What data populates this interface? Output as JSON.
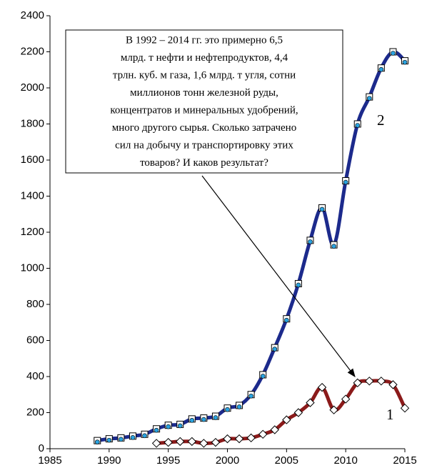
{
  "chart_data": {
    "type": "line",
    "annotation": [
      "В 1992 – 2014  гг. это примерно 6,5",
      "млрд. т нефти и нефтепродуктов, 4,4",
      "трлн. куб. м газа, 1,6 млрд. т угля, сотни",
      "миллионов тонн железной руды,",
      "концентратов и минеральных удобрений,",
      "много другого сырья. Сколько затрачено",
      "сил на добычу и транспортировку этих",
      "товаров? И каков результат?"
    ],
    "xlim": [
      1985,
      2015
    ],
    "xticks": [
      1985,
      1990,
      1995,
      2000,
      2005,
      2010,
      2015
    ],
    "ylim": [
      0,
      2400
    ],
    "yticks": [
      0,
      200,
      400,
      600,
      800,
      1000,
      1200,
      1400,
      1600,
      1800,
      2000,
      2200,
      2400
    ],
    "series": [
      {
        "name": "2",
        "color": "#1c2a8c",
        "x": [
          1989,
          1990,
          1991,
          1992,
          1993,
          1994,
          1995,
          1996,
          1997,
          1998,
          1999,
          2000,
          2001,
          2002,
          2003,
          2004,
          2005,
          2006,
          2007,
          2008,
          2009,
          2010,
          2011,
          2012,
          2013,
          2014,
          2015
        ],
        "values": [
          45,
          55,
          60,
          70,
          80,
          110,
          130,
          135,
          165,
          170,
          180,
          225,
          240,
          300,
          410,
          560,
          720,
          915,
          1155,
          1335,
          1130,
          1485,
          1800,
          1950,
          2110,
          2200,
          2150
        ]
      },
      {
        "name": "1",
        "color": "#8b1a1a",
        "x": [
          1994,
          1995,
          1996,
          1997,
          1998,
          1999,
          2000,
          2001,
          2002,
          2003,
          2004,
          2005,
          2006,
          2007,
          2008,
          2009,
          2010,
          2011,
          2012,
          2013,
          2014,
          2015
        ],
        "values": [
          30,
          35,
          40,
          40,
          30,
          35,
          55,
          55,
          60,
          80,
          105,
          160,
          200,
          255,
          340,
          215,
          275,
          365,
          375,
          375,
          355,
          225
        ]
      }
    ]
  }
}
